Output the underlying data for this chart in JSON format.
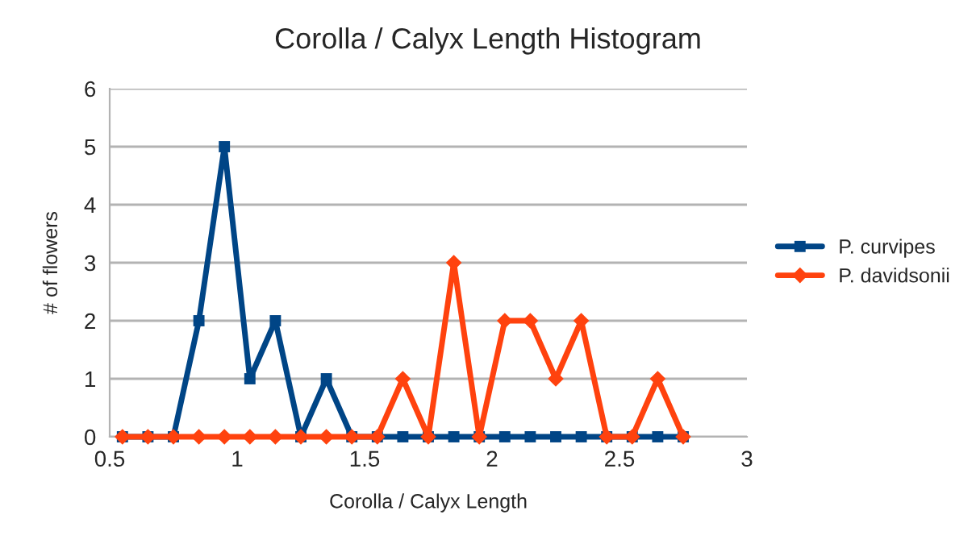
{
  "chart_data": {
    "type": "line",
    "title": "Corolla / Calyx Length Histogram",
    "xlabel": "Corolla / Calyx Length",
    "ylabel": "# of flowers",
    "x": [
      0.55,
      0.65,
      0.75,
      0.85,
      0.95,
      1.05,
      1.15,
      1.25,
      1.35,
      1.45,
      1.55,
      1.65,
      1.75,
      1.85,
      1.95,
      2.05,
      2.15,
      2.25,
      2.35,
      2.45,
      2.55,
      2.65,
      2.75
    ],
    "series": [
      {
        "name": "P. curvipes",
        "color": "#004586",
        "marker": "square",
        "values": [
          0,
          0,
          0,
          2,
          5,
          1,
          2,
          0,
          1,
          0,
          0,
          0,
          0,
          0,
          0,
          0,
          0,
          0,
          0,
          0,
          0,
          0,
          0
        ]
      },
      {
        "name": "P. davidsonii",
        "color": "#ff420e",
        "marker": "diamond",
        "values": [
          0,
          0,
          0,
          0,
          0,
          0,
          0,
          0,
          0,
          0,
          0,
          1,
          0,
          3,
          0,
          2,
          2,
          1,
          2,
          0,
          0,
          1,
          0
        ]
      }
    ],
    "xlim": [
      0.5,
      3
    ],
    "xticks": [
      0.5,
      1,
      1.5,
      2,
      2.5,
      3
    ],
    "ylim": [
      0,
      6
    ],
    "yticks": [
      0,
      1,
      2,
      3,
      4,
      5,
      6
    ],
    "grid": "y",
    "legend": "right",
    "line_style": "solid"
  }
}
